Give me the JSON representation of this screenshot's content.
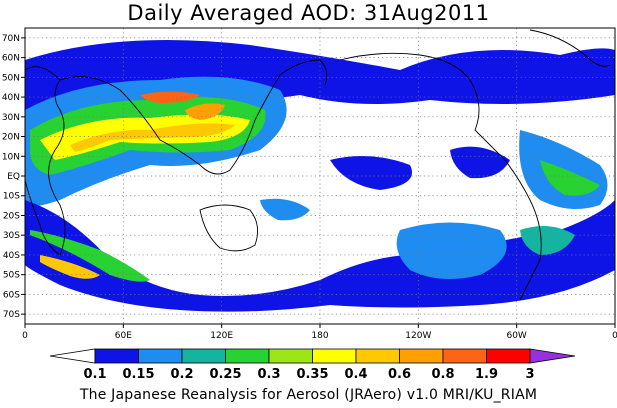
{
  "title": "Daily Averaged AOD: 31Aug2011",
  "footer": "The Japanese Reanalysis for Aerosol (JRAero) v1.0 MRI/KU_RIAM",
  "lat_labels": [
    "70N",
    "60N",
    "50N",
    "40N",
    "30N",
    "20N",
    "10N",
    "EQ",
    "10S",
    "20S",
    "30S",
    "40S",
    "50S",
    "60S",
    "70S"
  ],
  "lat_values": [
    70,
    60,
    50,
    40,
    30,
    20,
    10,
    0,
    -10,
    -20,
    -30,
    -40,
    -50,
    -60,
    -70
  ],
  "lon_labels": [
    "0",
    "60E",
    "120E",
    "180",
    "120W",
    "60W",
    "0"
  ],
  "lon_values": [
    0,
    60,
    120,
    180,
    240,
    300,
    360
  ],
  "colorbar": {
    "labels": [
      "0.1",
      "0.15",
      "0.2",
      "0.25",
      "0.3",
      "0.35",
      "0.4",
      "0.6",
      "0.8",
      "1.9",
      "3"
    ],
    "colors": [
      "#ffffff",
      "#0f14e6",
      "#1e8cf0",
      "#14b4a0",
      "#28d232",
      "#9be614",
      "#ffff00",
      "#ffc800",
      "#ffa000",
      "#ff6414",
      "#ff0000",
      "#9632dc"
    ]
  }
}
